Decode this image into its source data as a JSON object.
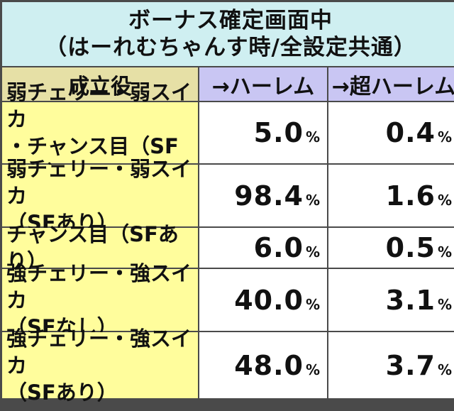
{
  "title": {
    "line1": "ボーナス確定画面中",
    "line2": "（はーれむちゃんす時/全設定共通）"
  },
  "header": {
    "role": "成立役",
    "col1": "→ハーレム",
    "col2": "→超ハーレム"
  },
  "rows": [
    {
      "role_line1": "弱チェリー・弱スイカ",
      "role_line2": "・チャンス目（SFなし）",
      "harem": "5.0",
      "super_harem": "0.4",
      "unit": "%"
    },
    {
      "role_line1": "弱チェリー・弱スイカ",
      "role_line2": "（SFあり）",
      "harem": "98.4",
      "super_harem": "1.6",
      "unit": "%"
    },
    {
      "role_line1": "チャンス目（SFあり）",
      "role_line2": "",
      "harem": "6.0",
      "super_harem": "0.5",
      "unit": "%"
    },
    {
      "role_line1": "強チェリー・強スイカ",
      "role_line2": "（SFなし）",
      "harem": "40.0",
      "super_harem": "3.1",
      "unit": "%"
    },
    {
      "role_line1": "強チェリー・強スイカ",
      "role_line2": "（SFあり）",
      "harem": "48.0",
      "super_harem": "3.7",
      "unit": "%"
    }
  ],
  "colors": {
    "title_bg": "#cfeff1",
    "role_header_bg": "#e6e0a6",
    "col_header_bg": "#c9c6f3",
    "role_bg": "#fffd9c",
    "border": "#4a4a4a"
  }
}
